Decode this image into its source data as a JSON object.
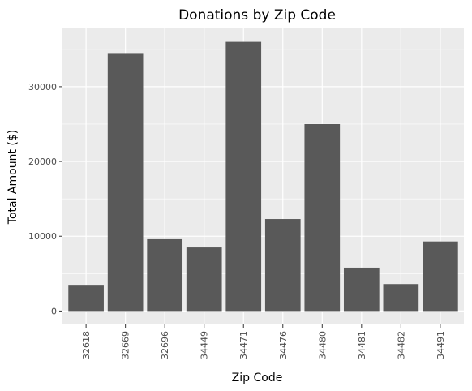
{
  "chart_data": {
    "type": "bar",
    "title": "Donations by Zip Code",
    "xlabel": "Zip Code",
    "ylabel": "Total Amount ($)",
    "categories": [
      "32618",
      "32669",
      "32696",
      "34449",
      "34471",
      "34476",
      "34480",
      "34481",
      "34482",
      "34491"
    ],
    "values": [
      3500,
      34500,
      9600,
      8500,
      36000,
      12300,
      25000,
      5800,
      3600,
      9300
    ],
    "ylim": [
      -1800,
      37800
    ],
    "yticks": [
      0,
      10000,
      20000,
      30000
    ],
    "ytick_labels": [
      "0",
      "10000",
      "20000",
      "30000"
    ],
    "grid": true,
    "bar_color": "#595959",
    "panel_background": "#ebebeb",
    "grid_color": "#ffffff"
  }
}
